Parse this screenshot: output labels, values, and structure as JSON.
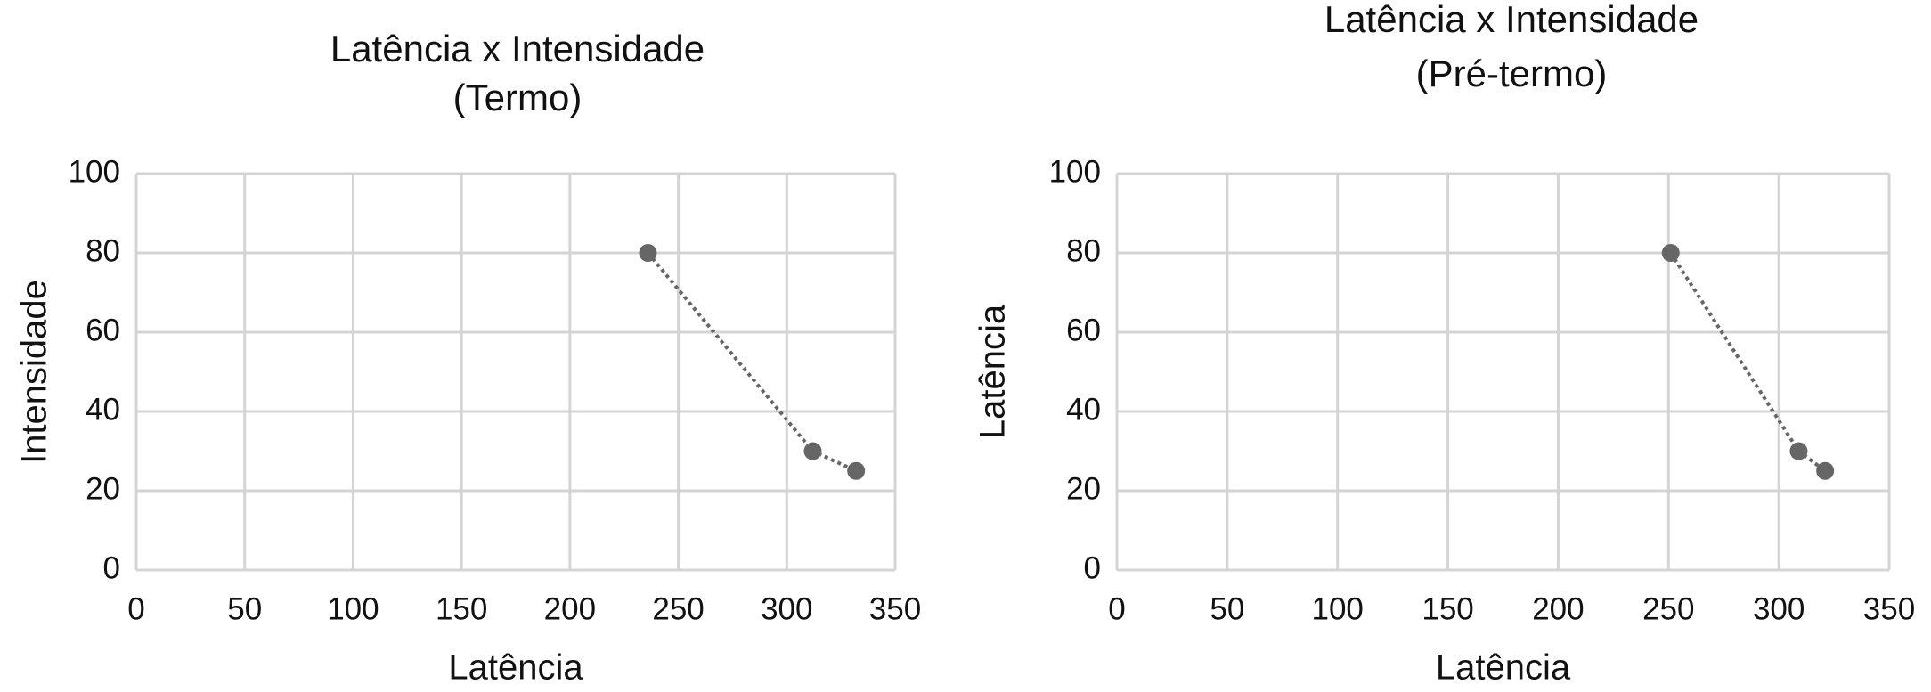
{
  "chart_data": [
    {
      "type": "scatter",
      "title": "Latência x Intensidade",
      "subtitle": "(Termo)",
      "x_label": "Latência",
      "y_label": "Intensidade",
      "x": [
        236,
        312,
        332
      ],
      "values": [
        80,
        30,
        25
      ],
      "color": "#666666",
      "line": "dotted",
      "xlim": [
        0,
        350
      ],
      "xticks": [
        0,
        50,
        100,
        150,
        200,
        250,
        300,
        350
      ],
      "ylim": [
        0,
        100
      ],
      "yticks": [
        0,
        20,
        40,
        60,
        80,
        100
      ],
      "grid": true
    },
    {
      "type": "scatter",
      "title": "Latência x Intensidade",
      "subtitle": "(Pré-termo)",
      "x_label": "Latência",
      "y_label": "Latência",
      "x": [
        251,
        309,
        321
      ],
      "values": [
        80,
        30,
        25
      ],
      "color": "#666666",
      "line": "dotted",
      "xlim": [
        0,
        350
      ],
      "xticks": [
        0,
        50,
        100,
        150,
        200,
        250,
        300,
        350
      ],
      "ylim": [
        0,
        100
      ],
      "yticks": [
        0,
        20,
        40,
        60,
        80,
        100
      ],
      "grid": true
    }
  ]
}
